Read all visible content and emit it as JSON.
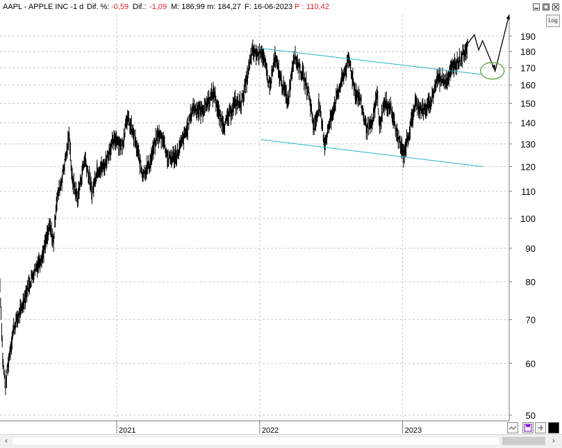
{
  "header": {
    "symbol": "AAPL - APPLE INC -",
    "period": "1 d",
    "dif_pct_label": "Dif. %:",
    "dif_pct_value": "-0,59",
    "dif_label": "Dif.:",
    "dif_value": "-1,09",
    "max_label": "M: 186,99",
    "min_label": "m: 184,27",
    "date_label": "F: 16-06-2023",
    "p_label": "P :",
    "p_value": "110,42"
  },
  "controls": {
    "log_label": "Log"
  },
  "icons": [
    "minimize-icon",
    "maximize-icon",
    "close-icon",
    "scale-icon",
    "save-icon",
    "pin-icon",
    "color-square-icon"
  ],
  "colors": {
    "price": "#000000",
    "channel": "#22b4c8",
    "target_ellipse": "#6aaa4a",
    "grid": "#c8c8c8",
    "negative": "#e0202a"
  },
  "chart_data": {
    "type": "line",
    "title": "AAPL - APPLE INC -",
    "scale": "log",
    "ylim": [
      49,
      205
    ],
    "x_range": [
      "2020-03-09",
      "2023-09-30"
    ],
    "x_ticks": [
      {
        "label": "2021",
        "date": "2021-01-01"
      },
      {
        "label": "2022",
        "date": "2022-01-01"
      },
      {
        "label": "2023",
        "date": "2023-01-01"
      }
    ],
    "y_ticks": [
      50,
      60,
      70,
      80,
      90,
      100,
      110,
      120,
      130,
      140,
      150,
      160,
      170,
      180,
      190
    ],
    "grid": true,
    "series": [
      {
        "style": "daily price bars",
        "points": [
          [
            "2020-03-09",
            79
          ],
          [
            "2020-03-16",
            61
          ],
          [
            "2020-03-23",
            55
          ],
          [
            "2020-03-30",
            60
          ],
          [
            "2020-04-13",
            68
          ],
          [
            "2020-04-30",
            72
          ],
          [
            "2020-05-18",
            78
          ],
          [
            "2020-06-08",
            84
          ],
          [
            "2020-06-26",
            88
          ],
          [
            "2020-07-14",
            97
          ],
          [
            "2020-07-24",
            92
          ],
          [
            "2020-07-31",
            106
          ],
          [
            "2020-08-14",
            115
          ],
          [
            "2020-08-28",
            128
          ],
          [
            "2020-09-02",
            135
          ],
          [
            "2020-09-08",
            116
          ],
          [
            "2020-09-23",
            107
          ],
          [
            "2020-10-12",
            124
          ],
          [
            "2020-10-30",
            109
          ],
          [
            "2020-11-12",
            119
          ],
          [
            "2020-11-30",
            120
          ],
          [
            "2020-12-15",
            128
          ],
          [
            "2020-12-31",
            133
          ],
          [
            "2021-01-15",
            128
          ],
          [
            "2021-01-26",
            143
          ],
          [
            "2021-02-12",
            135
          ],
          [
            "2021-03-08",
            117
          ],
          [
            "2021-03-26",
            121
          ],
          [
            "2021-04-15",
            134
          ],
          [
            "2021-04-29",
            133
          ],
          [
            "2021-05-12",
            123
          ],
          [
            "2021-06-04",
            125
          ],
          [
            "2021-06-30",
            137
          ],
          [
            "2021-07-15",
            148
          ],
          [
            "2021-08-06",
            146
          ],
          [
            "2021-09-07",
            156
          ],
          [
            "2021-09-20",
            143
          ],
          [
            "2021-10-04",
            139
          ],
          [
            "2021-10-29",
            150
          ],
          [
            "2021-11-15",
            150
          ],
          [
            "2021-12-01",
            165
          ],
          [
            "2021-12-13",
            180
          ],
          [
            "2021-12-30",
            178
          ],
          [
            "2022-01-04",
            182
          ],
          [
            "2022-01-27",
            159
          ],
          [
            "2022-02-09",
            176
          ],
          [
            "2022-02-24",
            163
          ],
          [
            "2022-03-14",
            151
          ],
          [
            "2022-03-30",
            178
          ],
          [
            "2022-04-20",
            166
          ],
          [
            "2022-05-05",
            157
          ],
          [
            "2022-05-20",
            137
          ],
          [
            "2022-06-01",
            149
          ],
          [
            "2022-06-16",
            130
          ],
          [
            "2022-07-08",
            147
          ],
          [
            "2022-07-29",
            162
          ],
          [
            "2022-08-17",
            175
          ],
          [
            "2022-09-02",
            156
          ],
          [
            "2022-09-13",
            153
          ],
          [
            "2022-09-30",
            138
          ],
          [
            "2022-10-14",
            138
          ],
          [
            "2022-10-28",
            155
          ],
          [
            "2022-11-03",
            138
          ],
          [
            "2022-11-15",
            150
          ],
          [
            "2022-12-01",
            148
          ],
          [
            "2022-12-15",
            136
          ],
          [
            "2023-01-03",
            125
          ],
          [
            "2023-01-20",
            137
          ],
          [
            "2023-02-02",
            150
          ],
          [
            "2023-02-24",
            146
          ],
          [
            "2023-03-13",
            150
          ],
          [
            "2023-03-31",
            164
          ],
          [
            "2023-04-25",
            163
          ],
          [
            "2023-05-12",
            172
          ],
          [
            "2023-05-26",
            175
          ],
          [
            "2023-06-06",
            179
          ],
          [
            "2023-06-16",
            185
          ]
        ]
      }
    ],
    "annotations": {
      "channel_upper": [
        [
          "2022-01-04",
          182
        ],
        [
          "2023-07-24",
          166
        ]
      ],
      "channel_lower": [
        [
          "2022-01-04",
          132
        ],
        [
          "2023-07-24",
          120
        ]
      ],
      "projection_path": [
        [
          "2023-06-16",
          185
        ],
        [
          "2023-07-03",
          191
        ],
        [
          "2023-07-14",
          181
        ],
        [
          "2023-07-24",
          187
        ],
        [
          "2023-08-25",
          168
        ],
        [
          "2023-09-30",
          205
        ]
      ],
      "target_zone": {
        "date": "2023-08-25",
        "value": 169
      }
    }
  }
}
